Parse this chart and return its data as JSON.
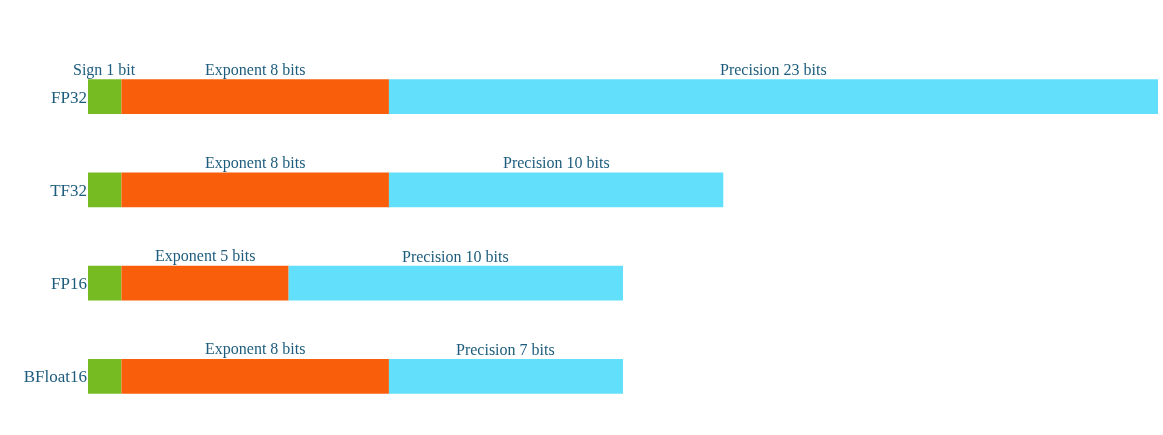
{
  "chart_data": {
    "type": "bar",
    "orientation": "horizontal",
    "stacked": true,
    "categories": [
      "FP32",
      "TF32",
      "FP16",
      "BFloat16"
    ],
    "series": [
      {
        "color": "#77bb22",
        "values": [
          1,
          1,
          1,
          1
        ],
        "value_labels": [
          "Sign 1 bit",
          null,
          null,
          null
        ]
      },
      {
        "color": "#f95e0a",
        "values": [
          8,
          8,
          5,
          8
        ],
        "value_labels": [
          "Exponent 8 bits",
          "Exponent 8 bits",
          "Exponent 5 bits",
          "Exponent 8 bits"
        ]
      },
      {
        "color": "#62e0fb",
        "values": [
          23,
          10,
          10,
          7
        ],
        "value_labels": [
          "Precision 23 bits",
          "Precision 10 bits",
          "Precision 10 bits",
          "Precision 7 bits"
        ]
      }
    ],
    "tick_labels": "y"
  }
}
